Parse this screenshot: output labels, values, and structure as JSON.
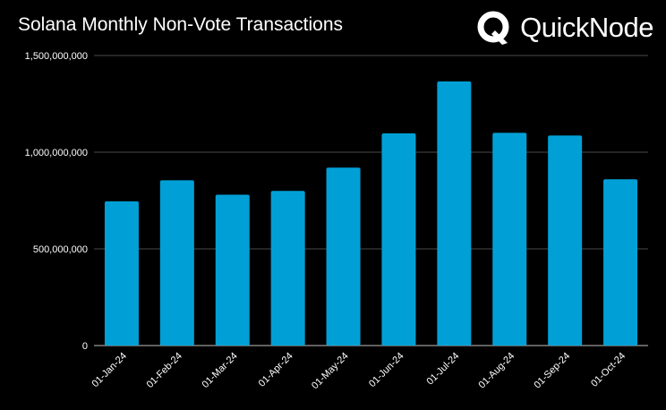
{
  "brand": {
    "name": "QuickNode",
    "logo_icon": "quicknode-logo-icon"
  },
  "colors": {
    "background": "#000000",
    "bar": "#00a0d6",
    "grid": "#4a4a4a",
    "text": "#ffffff"
  },
  "chart_data": {
    "type": "bar",
    "title": "Solana Monthly Non-Vote Transactions",
    "xlabel": "",
    "ylabel": "",
    "categories": [
      "01-Jan-24",
      "01-Feb-24",
      "01-Mar-24",
      "01-Apr-24",
      "01-May-24",
      "01-Jun-24",
      "01-Jul-24",
      "01-Aug-24",
      "01-Sep-24",
      "01-Oct-24"
    ],
    "values": [
      746000000,
      855000000,
      780000000,
      800000000,
      920000000,
      1097000000,
      1366000000,
      1100000000,
      1086000000,
      860000000
    ],
    "ylim": [
      0,
      1500000000
    ],
    "yticks": [
      0,
      500000000,
      1000000000,
      1500000000
    ],
    "ytick_labels": [
      "0",
      "500,000,000",
      "1,000,000,000",
      "1,500,000,000"
    ],
    "grid": true,
    "legend": "none"
  }
}
